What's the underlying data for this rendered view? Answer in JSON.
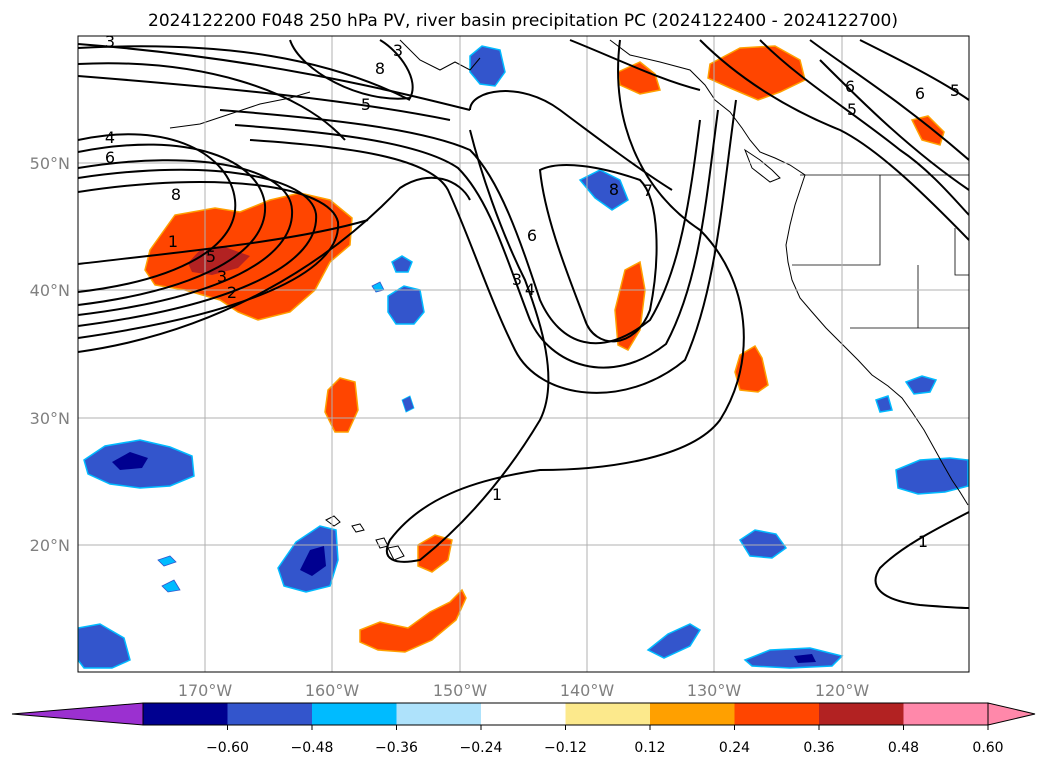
{
  "title": "2024122200 F048 250 hPa PV, river basin precipitation PC (2024122400 - 2024122700)",
  "map": {
    "lon_labels": [
      "170°W",
      "160°W",
      "150°W",
      "140°W",
      "130°W",
      "120°W"
    ],
    "lat_labels": [
      "50°N",
      "40°N",
      "30°N",
      "20°N"
    ],
    "contour_labels": [
      "3",
      "3",
      "8",
      "5",
      "4",
      "6",
      "8",
      "1",
      "5",
      "3",
      "2",
      "6",
      "3",
      "4",
      "8",
      "7",
      "1",
      "6",
      "5",
      "6",
      "5",
      "1"
    ]
  },
  "colorbar": {
    "tick_labels": [
      "−0.60",
      "−0.48",
      "−0.36",
      "−0.24",
      "−0.12",
      "0.12",
      "0.24",
      "0.36",
      "0.48",
      "0.60"
    ],
    "colors": {
      "under": "#9b30d0",
      "bins": [
        "#000090",
        "#3355cc",
        "#00bbff",
        "#aee2fb",
        "#ffffff",
        "#fce98c",
        "#ffa000",
        "#ff4500",
        "#b22222",
        "#ff88aa"
      ],
      "over": "#ff88aa"
    }
  }
}
